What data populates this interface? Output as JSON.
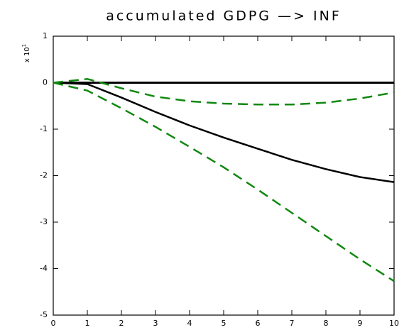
{
  "chart_data": {
    "type": "line",
    "title": "accumulated GDPG —> INF",
    "y_multiplier": "x 10",
    "y_multiplier_exponent": "1",
    "x": [
      0,
      1,
      2,
      3,
      4,
      5,
      6,
      7,
      8,
      9,
      10
    ],
    "series": [
      {
        "color": "#000000",
        "dash": false,
        "values": [
          0,
          -0.03,
          -0.32,
          -0.63,
          -0.92,
          -1.18,
          -1.42,
          -1.66,
          -1.86,
          -2.03,
          -2.14
        ]
      },
      {
        "color": "#118811",
        "dash": true,
        "values": [
          0,
          0.08,
          -0.12,
          -0.3,
          -0.4,
          -0.45,
          -0.47,
          -0.47,
          -0.43,
          -0.34,
          -0.21
        ]
      },
      {
        "color": "#118811",
        "dash": true,
        "values": [
          0,
          -0.17,
          -0.55,
          -0.95,
          -1.38,
          -1.82,
          -2.3,
          -2.8,
          -3.3,
          -3.8,
          -4.27
        ]
      }
    ],
    "hline": 0,
    "xlim": [
      0,
      10
    ],
    "xticks": [
      0,
      1,
      2,
      3,
      4,
      5,
      6,
      7,
      8,
      9,
      10
    ],
    "ylim": [
      -5,
      1
    ],
    "yticks": [
      -5,
      -4,
      -3,
      -2,
      -1,
      0,
      1
    ]
  }
}
